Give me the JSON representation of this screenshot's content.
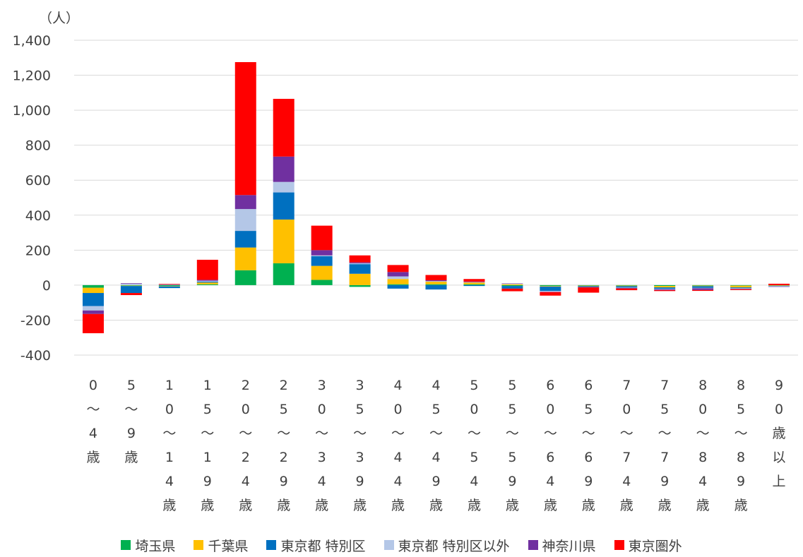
{
  "chart_data": {
    "type": "bar",
    "stacked": true,
    "unit_label": "（人）",
    "ylim": [
      -400,
      1400
    ],
    "y_ticks": [
      1400,
      1200,
      1000,
      800,
      600,
      400,
      200,
      0,
      -200,
      -400
    ],
    "y_tick_labels": [
      "1,400",
      "1,200",
      "1,000",
      "800",
      "600",
      "400",
      "200",
      "0",
      "-200",
      "-400"
    ],
    "grid": true,
    "legend_position": "bottom",
    "categories": [
      [
        "0",
        "〜",
        "4",
        "歳"
      ],
      [
        "5",
        "〜",
        "9",
        "歳"
      ],
      [
        "1",
        "0",
        "〜",
        "1",
        "4",
        "歳"
      ],
      [
        "1",
        "5",
        "〜",
        "1",
        "9",
        "歳"
      ],
      [
        "2",
        "0",
        "〜",
        "2",
        "4",
        "歳"
      ],
      [
        "2",
        "5",
        "〜",
        "2",
        "9",
        "歳"
      ],
      [
        "3",
        "0",
        "〜",
        "3",
        "4",
        "歳"
      ],
      [
        "3",
        "5",
        "〜",
        "3",
        "9",
        "歳"
      ],
      [
        "4",
        "0",
        "〜",
        "4",
        "4",
        "歳"
      ],
      [
        "4",
        "5",
        "〜",
        "4",
        "9",
        "歳"
      ],
      [
        "5",
        "0",
        "〜",
        "5",
        "4",
        "歳"
      ],
      [
        "5",
        "5",
        "〜",
        "5",
        "9",
        "歳"
      ],
      [
        "6",
        "0",
        "〜",
        "6",
        "4",
        "歳"
      ],
      [
        "6",
        "5",
        "〜",
        "6",
        "9",
        "歳"
      ],
      [
        "7",
        "0",
        "〜",
        "7",
        "4",
        "歳"
      ],
      [
        "7",
        "5",
        "〜",
        "7",
        "9",
        "歳"
      ],
      [
        "8",
        "0",
        "〜",
        "8",
        "4",
        "歳"
      ],
      [
        "8",
        "5",
        "〜",
        "8",
        "9",
        "歳"
      ],
      [
        "9",
        "0",
        "歳",
        "以",
        "上"
      ]
    ],
    "series": [
      {
        "name": "埼玉県",
        "color": "#00b050",
        "values": [
          -15,
          -3,
          -5,
          5,
          85,
          125,
          30,
          -10,
          5,
          5,
          5,
          -5,
          -5,
          -3,
          -3,
          -5,
          -3,
          -3,
          -2
        ]
      },
      {
        "name": "千葉県",
        "color": "#ffc000",
        "values": [
          -30,
          -2,
          -2,
          10,
          130,
          250,
          80,
          65,
          30,
          15,
          10,
          5,
          -3,
          -3,
          -3,
          -8,
          -3,
          -10,
          -2
        ]
      },
      {
        "name": "東京都 特別区",
        "color": "#0070c0",
        "values": [
          -75,
          -40,
          -10,
          5,
          95,
          155,
          55,
          55,
          -20,
          -25,
          -5,
          -15,
          -25,
          -5,
          -8,
          -8,
          -10,
          -5,
          -2
        ]
      },
      {
        "name": "東京都 特別区以外",
        "color": "#b4c7e7",
        "values": [
          -25,
          8,
          2,
          5,
          125,
          60,
          5,
          5,
          15,
          3,
          2,
          3,
          -5,
          2,
          -2,
          -3,
          -2,
          -3,
          -2
        ]
      },
      {
        "name": "神奈川県",
        "color": "#7030a0",
        "values": [
          -20,
          3,
          2,
          5,
          80,
          145,
          30,
          5,
          25,
          5,
          3,
          2,
          -2,
          -2,
          -3,
          -5,
          -10,
          -2,
          -2
        ]
      },
      {
        "name": "東京圏外",
        "color": "#ff0000",
        "values": [
          -110,
          -12,
          3,
          115,
          760,
          330,
          140,
          40,
          40,
          30,
          15,
          -15,
          -20,
          -30,
          -10,
          -5,
          -5,
          -5,
          8
        ]
      }
    ]
  }
}
